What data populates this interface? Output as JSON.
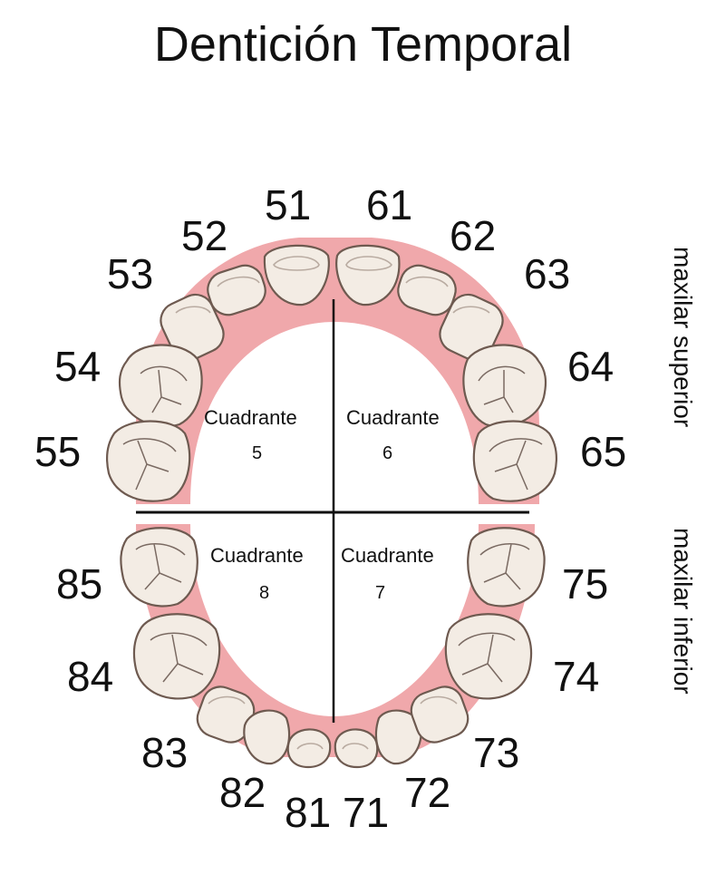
{
  "title": "Dentición Temporal",
  "side_labels": {
    "upper": "maxilar superior",
    "lower": "maxilar inferior"
  },
  "quadrants": [
    {
      "label": "Cuadrante",
      "number": "5"
    },
    {
      "label": "Cuadrante",
      "number": "6"
    },
    {
      "label": "Cuadrante",
      "number": "8"
    },
    {
      "label": "Cuadrante",
      "number": "7"
    }
  ],
  "teeth_upper_right": [
    "51",
    "52",
    "53",
    "54",
    "55"
  ],
  "teeth_upper_left": [
    "61",
    "62",
    "63",
    "64",
    "65"
  ],
  "teeth_lower_right": [
    "81",
    "82",
    "83",
    "84",
    "85"
  ],
  "teeth_lower_left": [
    "71",
    "72",
    "73",
    "74",
    "75"
  ],
  "colors": {
    "gum": "#f0a8ab",
    "tooth": "#f3ece4",
    "outline": "#6e5a50"
  }
}
